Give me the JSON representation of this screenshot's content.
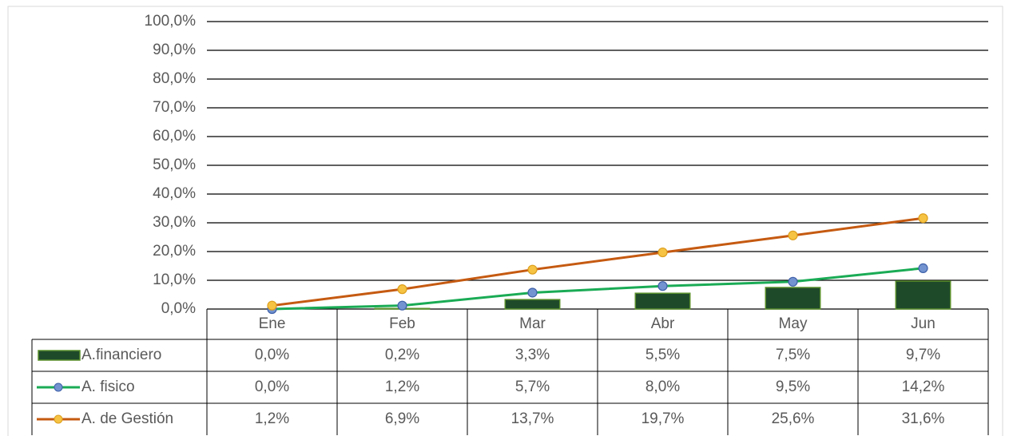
{
  "chart_data": {
    "type": "bar",
    "categories": [
      "Ene",
      "Feb",
      "Mar",
      "Abr",
      "May",
      "Jun"
    ],
    "series": [
      {
        "name": "A.financiero",
        "type": "bar",
        "color": "#1f4a2a",
        "edge": "#5a8f2c",
        "values": [
          0.0,
          0.2,
          3.3,
          5.5,
          7.5,
          9.7
        ],
        "value_labels": [
          "0,0%",
          "0,2%",
          "3,3%",
          "5,5%",
          "7,5%",
          "9,7%"
        ]
      },
      {
        "name": "A. fisico",
        "type": "line",
        "color": "#1aab55",
        "marker_fill": "#7293cf",
        "marker_edge": "#3e5fa8",
        "values": [
          0.0,
          1.2,
          5.7,
          8.0,
          9.5,
          14.2
        ],
        "value_labels": [
          "0,0%",
          "1,2%",
          "5,7%",
          "8,0%",
          "9,5%",
          "14,2%"
        ]
      },
      {
        "name": "A. de Gestión",
        "type": "line",
        "color": "#c55a11",
        "marker_fill": "#f6c343",
        "marker_edge": "#dd9f1e",
        "values": [
          1.2,
          6.9,
          13.7,
          19.7,
          25.6,
          31.6
        ],
        "value_labels": [
          "1,2%",
          "6,9%",
          "13,7%",
          "19,7%",
          "25,6%",
          "31,6%"
        ]
      }
    ],
    "ylim": [
      0,
      100
    ],
    "yticks": [
      {
        "value": 0,
        "label": "0,0%"
      },
      {
        "value": 10,
        "label": "10,0%"
      },
      {
        "value": 20,
        "label": "20,0%"
      },
      {
        "value": 30,
        "label": "30,0%"
      },
      {
        "value": 40,
        "label": "40,0%"
      },
      {
        "value": 50,
        "label": "50,0%"
      },
      {
        "value": 60,
        "label": "60,0%"
      },
      {
        "value": 70,
        "label": "70,0%"
      },
      {
        "value": 80,
        "label": "80,0%"
      },
      {
        "value": 90,
        "label": "90,0%"
      },
      {
        "value": 100,
        "label": "100,0%"
      }
    ],
    "grid": true,
    "data_table": true
  }
}
